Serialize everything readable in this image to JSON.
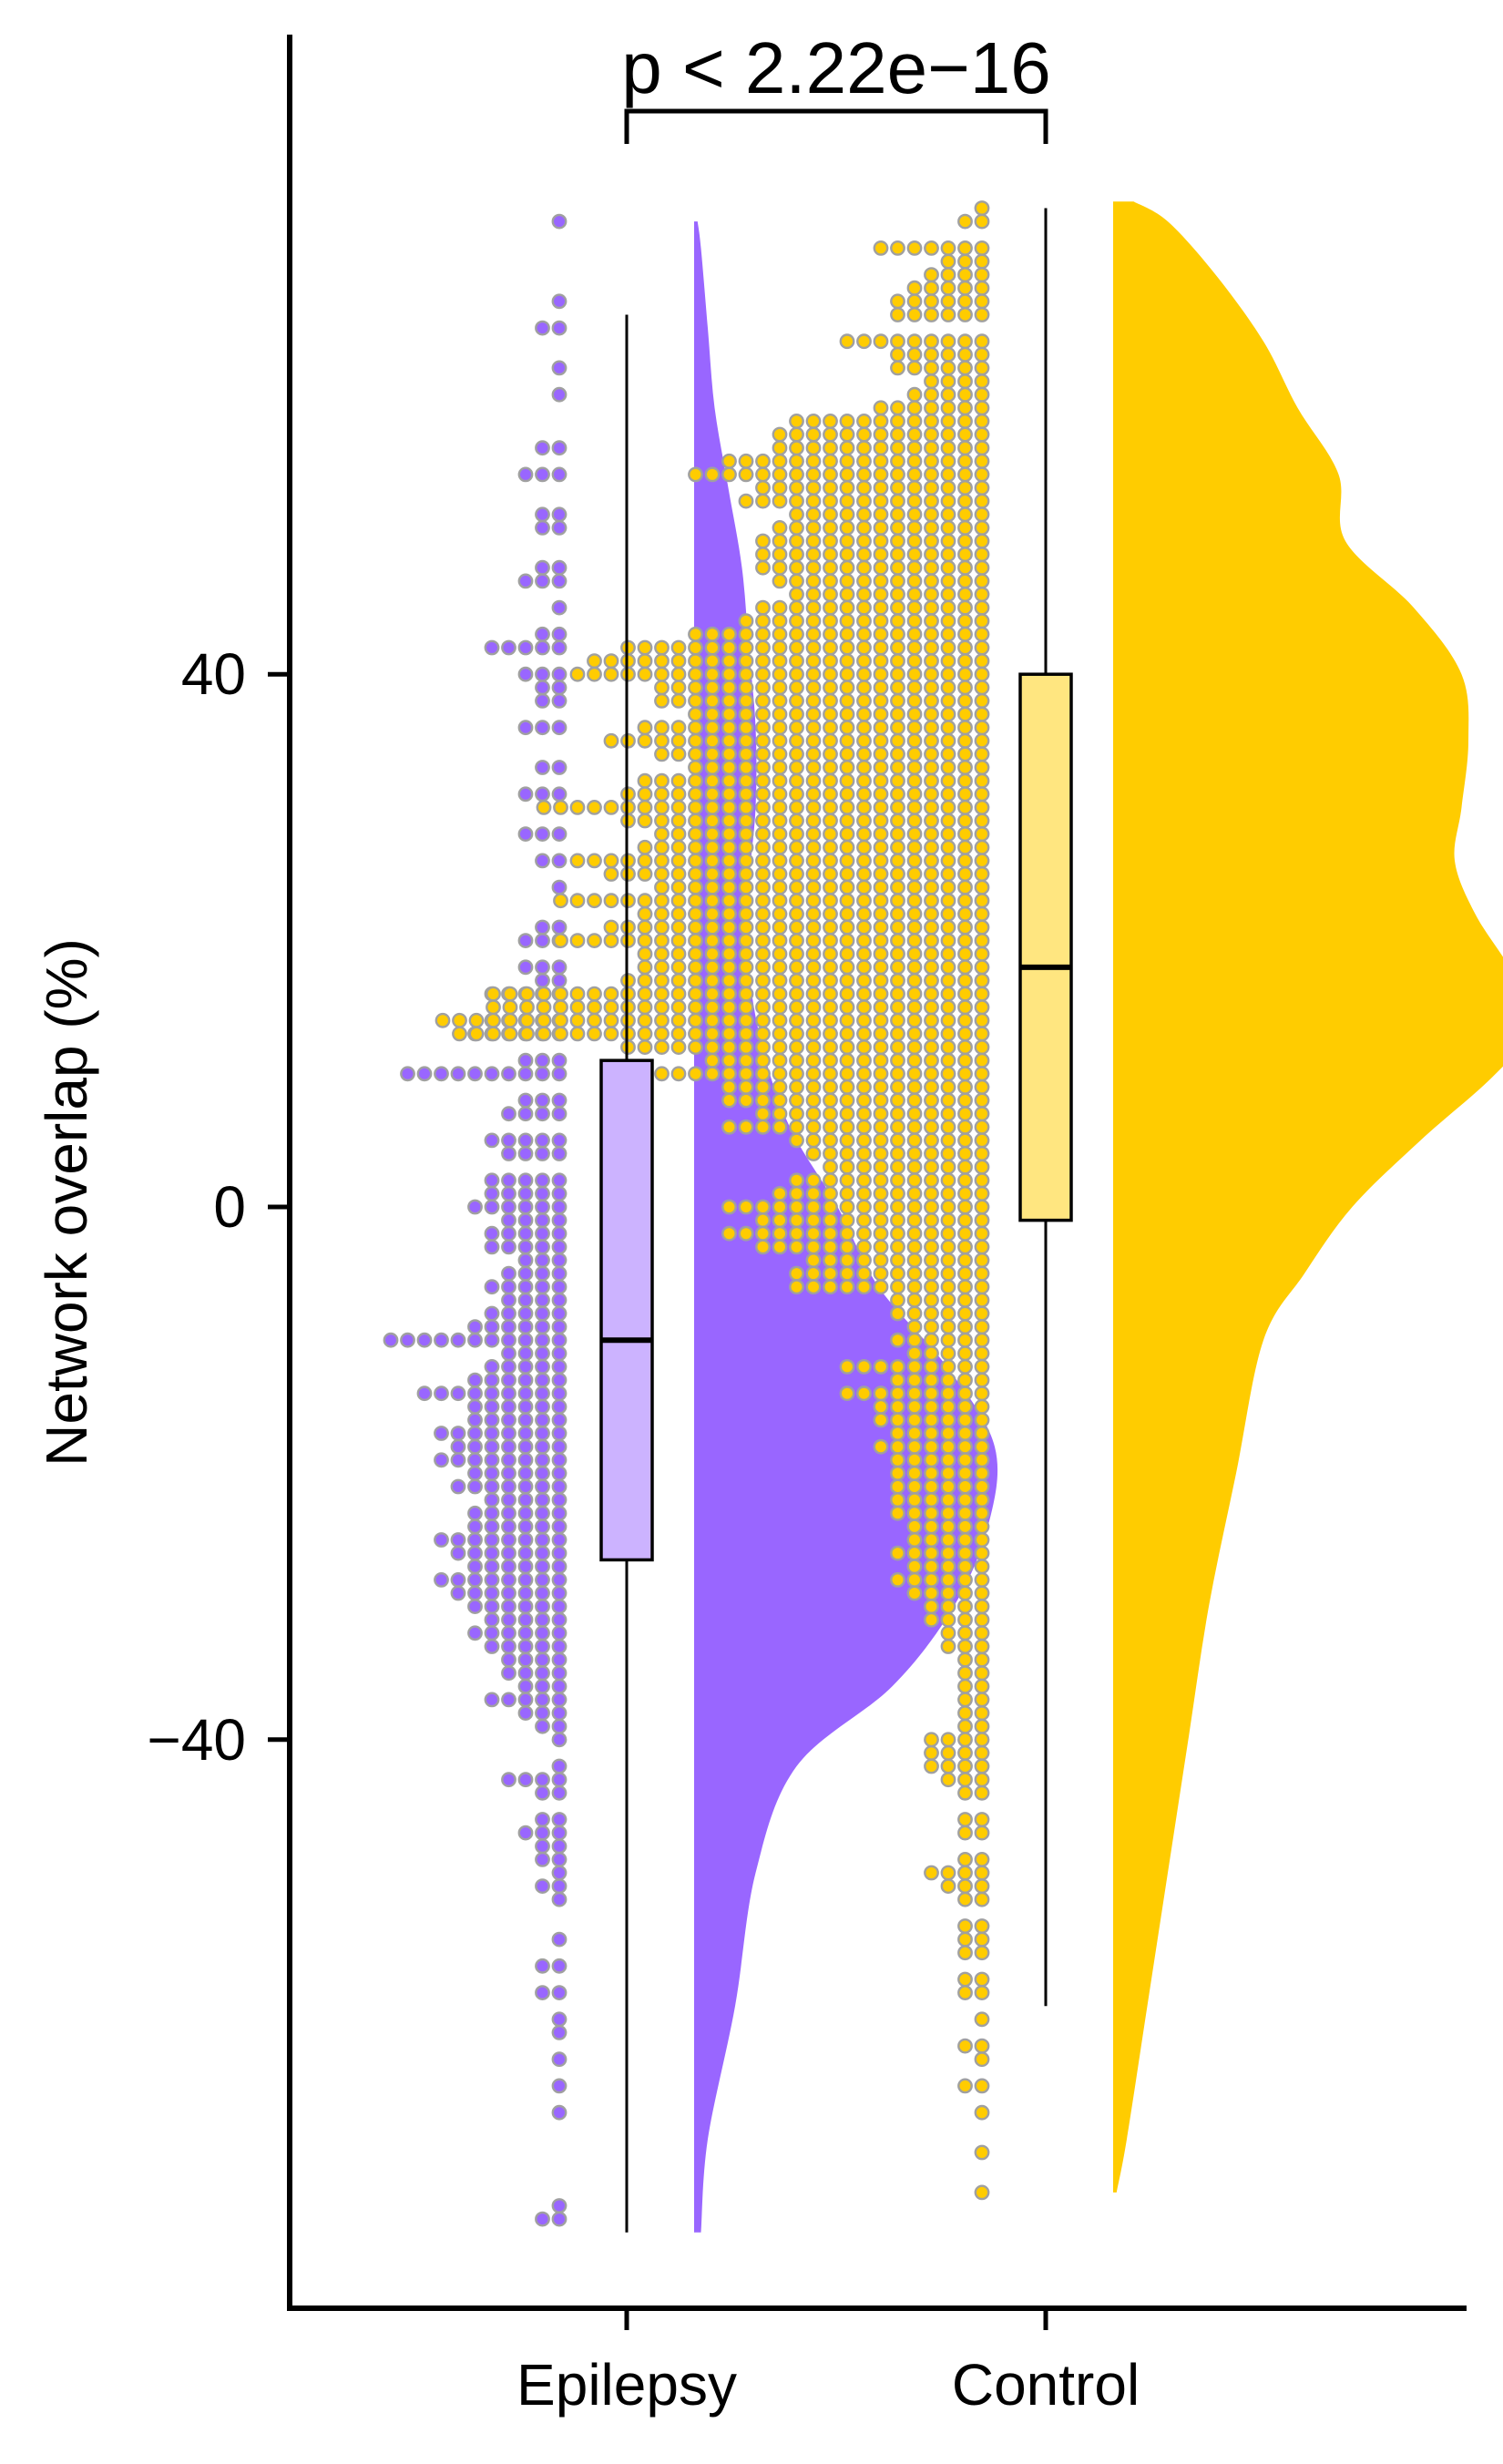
{
  "chart_data": {
    "type": "raincloud",
    "title": "",
    "ylabel": "Network overlap (%)",
    "xlabel": "",
    "ylim": [
      -83,
      92
    ],
    "yticks": [
      -40,
      0,
      40
    ],
    "ytick_labels": [
      "−40",
      "0",
      "40"
    ],
    "categories": [
      "Epilepsy",
      "Control"
    ],
    "annotation": "p < 2.22e−16",
    "grid": false,
    "colors": {
      "epilepsy_fill": "#9966ff",
      "epilepsy_box": "#ccb3ff",
      "control_fill": "#ffcc00",
      "control_box": "#ffe680",
      "point_edge": "#a0a0a0",
      "axis": "#000000"
    },
    "series": [
      {
        "name": "Epilepsy",
        "box": {
          "min": -77,
          "q1": -26.5,
          "median": -10,
          "q3": 11,
          "max": 67
        },
        "density": [
          [
            -77,
            0.01
          ],
          [
            -70,
            0.02
          ],
          [
            -60,
            0.06
          ],
          [
            -50,
            0.09
          ],
          [
            -42,
            0.15
          ],
          [
            -36,
            0.29
          ],
          [
            -30,
            0.38
          ],
          [
            -24,
            0.43
          ],
          [
            -18,
            0.44
          ],
          [
            -12,
            0.37
          ],
          [
            -6,
            0.27
          ],
          [
            0,
            0.21
          ],
          [
            6,
            0.14
          ],
          [
            12,
            0.1
          ],
          [
            18,
            0.08
          ],
          [
            24,
            0.08
          ],
          [
            30,
            0.09
          ],
          [
            36,
            0.09
          ],
          [
            42,
            0.08
          ],
          [
            48,
            0.07
          ],
          [
            54,
            0.05
          ],
          [
            60,
            0.03
          ],
          [
            66,
            0.02
          ],
          [
            72,
            0.01
          ],
          [
            74,
            0.005
          ]
        ],
        "dot_rows": [
          [
            74,
            1
          ],
          [
            68,
            1
          ],
          [
            66,
            2
          ],
          [
            63,
            1
          ],
          [
            61,
            1
          ],
          [
            57,
            2
          ],
          [
            55,
            3
          ],
          [
            52,
            2
          ],
          [
            51,
            2
          ],
          [
            48,
            2
          ],
          [
            47,
            3
          ],
          [
            45,
            1
          ],
          [
            43,
            2
          ],
          [
            42,
            5
          ],
          [
            40,
            3
          ],
          [
            39,
            2
          ],
          [
            38,
            2
          ],
          [
            36,
            3
          ],
          [
            33,
            2
          ],
          [
            31,
            3
          ],
          [
            28,
            3
          ],
          [
            26,
            2
          ],
          [
            24,
            1
          ],
          [
            21,
            2
          ],
          [
            20,
            3
          ],
          [
            18,
            3
          ],
          [
            17,
            2
          ],
          [
            16,
            5
          ],
          [
            14,
            5
          ],
          [
            13,
            6
          ],
          [
            11,
            3
          ],
          [
            10,
            10
          ],
          [
            8,
            3
          ],
          [
            7,
            4
          ],
          [
            5,
            5
          ],
          [
            4,
            4
          ],
          [
            2,
            5
          ],
          [
            1,
            5
          ],
          [
            0,
            6
          ],
          [
            -1,
            4
          ],
          [
            -2,
            5
          ],
          [
            -3,
            5
          ],
          [
            -4,
            3
          ],
          [
            -5,
            4
          ],
          [
            -6,
            5
          ],
          [
            -7,
            4
          ],
          [
            -8,
            5
          ],
          [
            -9,
            6
          ],
          [
            -10,
            11
          ],
          [
            -11,
            4
          ],
          [
            -12,
            5
          ],
          [
            -13,
            6
          ],
          [
            -14,
            9
          ],
          [
            -15,
            6
          ],
          [
            -16,
            6
          ],
          [
            -17,
            8
          ],
          [
            -18,
            7
          ],
          [
            -19,
            8
          ],
          [
            -20,
            6
          ],
          [
            -21,
            7
          ],
          [
            -22,
            5
          ],
          [
            -23,
            6
          ],
          [
            -24,
            6
          ],
          [
            -25,
            8
          ],
          [
            -26,
            7
          ],
          [
            -27,
            6
          ],
          [
            -28,
            8
          ],
          [
            -29,
            7
          ],
          [
            -30,
            6
          ],
          [
            -31,
            5
          ],
          [
            -32,
            6
          ],
          [
            -33,
            5
          ],
          [
            -34,
            4
          ],
          [
            -35,
            4
          ],
          [
            -36,
            3
          ],
          [
            -37,
            5
          ],
          [
            -38,
            3
          ],
          [
            -39,
            2
          ],
          [
            -40,
            1
          ],
          [
            -42,
            1
          ],
          [
            -43,
            4
          ],
          [
            -44,
            2
          ],
          [
            -46,
            2
          ],
          [
            -47,
            3
          ],
          [
            -48,
            2
          ],
          [
            -49,
            2
          ],
          [
            -50,
            1
          ],
          [
            -51,
            2
          ],
          [
            -52,
            1
          ],
          [
            -55,
            1
          ],
          [
            -57,
            2
          ],
          [
            -59,
            2
          ],
          [
            -61,
            1
          ],
          [
            -62,
            1
          ],
          [
            -64,
            1
          ],
          [
            -66,
            1
          ],
          [
            -68,
            1
          ],
          [
            -75,
            1
          ],
          [
            -76,
            2
          ]
        ]
      },
      {
        "name": "Control",
        "box": {
          "min": -60,
          "q1": -1,
          "median": 18,
          "q3": 40,
          "max": 75
        },
        "density": [
          [
            -74,
            0.005
          ],
          [
            -70,
            0.02
          ],
          [
            -60,
            0.05
          ],
          [
            -50,
            0.08
          ],
          [
            -40,
            0.11
          ],
          [
            -30,
            0.14
          ],
          [
            -20,
            0.18
          ],
          [
            -10,
            0.22
          ],
          [
            -5,
            0.28
          ],
          [
            0,
            0.35
          ],
          [
            5,
            0.45
          ],
          [
            10,
            0.56
          ],
          [
            14,
            0.62
          ],
          [
            18,
            0.58
          ],
          [
            22,
            0.53
          ],
          [
            26,
            0.5
          ],
          [
            30,
            0.51
          ],
          [
            35,
            0.52
          ],
          [
            40,
            0.51
          ],
          [
            45,
            0.44
          ],
          [
            50,
            0.34
          ],
          [
            55,
            0.33
          ],
          [
            60,
            0.27
          ],
          [
            65,
            0.22
          ],
          [
            70,
            0.15
          ],
          [
            74,
            0.08
          ],
          [
            75.5,
            0.03
          ]
        ],
        "dot_rows": [
          [
            75,
            1
          ],
          [
            74,
            2
          ],
          [
            72,
            7
          ],
          [
            71,
            3
          ],
          [
            70,
            4
          ],
          [
            69,
            5
          ],
          [
            68,
            6
          ],
          [
            67,
            6
          ],
          [
            65,
            9
          ],
          [
            64,
            6
          ],
          [
            63,
            6
          ],
          [
            62,
            4
          ],
          [
            61,
            5
          ],
          [
            60,
            7
          ],
          [
            59,
            12
          ],
          [
            58,
            13
          ],
          [
            57,
            13
          ],
          [
            56,
            16
          ],
          [
            55,
            18
          ],
          [
            54,
            14
          ],
          [
            53,
            15
          ],
          [
            52,
            12
          ],
          [
            51,
            13
          ],
          [
            50,
            14
          ],
          [
            49,
            14
          ],
          [
            48,
            14
          ],
          [
            47,
            13
          ],
          [
            46,
            12
          ],
          [
            45,
            14
          ],
          [
            44,
            15
          ],
          [
            43,
            18
          ],
          [
            42,
            22
          ],
          [
            41,
            24
          ],
          [
            40,
            25
          ],
          [
            39,
            20
          ],
          [
            38,
            20
          ],
          [
            37,
            18
          ],
          [
            36,
            21
          ],
          [
            35,
            23
          ],
          [
            34,
            20
          ],
          [
            33,
            18
          ],
          [
            32,
            21
          ],
          [
            31,
            22
          ],
          [
            30,
            27
          ],
          [
            29,
            22
          ],
          [
            28,
            20
          ],
          [
            27,
            21
          ],
          [
            26,
            25
          ],
          [
            25,
            23
          ],
          [
            24,
            20
          ],
          [
            23,
            26
          ],
          [
            22,
            21
          ],
          [
            21,
            23
          ],
          [
            20,
            26
          ],
          [
            19,
            21
          ],
          [
            18,
            21
          ],
          [
            17,
            22
          ],
          [
            16,
            30
          ],
          [
            15,
            30
          ],
          [
            14,
            33
          ],
          [
            13,
            32
          ],
          [
            12,
            22
          ],
          [
            11,
            17
          ],
          [
            10,
            21
          ],
          [
            9,
            16
          ],
          [
            8,
            16
          ],
          [
            7,
            14
          ],
          [
            6,
            16
          ],
          [
            5,
            12
          ],
          [
            4,
            11
          ],
          [
            3,
            10
          ],
          [
            2,
            12
          ],
          [
            1,
            13
          ],
          [
            0,
            16
          ],
          [
            -1,
            14
          ],
          [
            -2,
            16
          ],
          [
            -3,
            14
          ],
          [
            -4,
            11
          ],
          [
            -5,
            12
          ],
          [
            -6,
            12
          ],
          [
            -7,
            6
          ],
          [
            -8,
            6
          ],
          [
            -9,
            5
          ],
          [
            -10,
            6
          ],
          [
            -11,
            5
          ],
          [
            -12,
            9
          ],
          [
            -13,
            6
          ],
          [
            -14,
            9
          ],
          [
            -15,
            7
          ],
          [
            -16,
            7
          ],
          [
            -17,
            6
          ],
          [
            -18,
            7
          ],
          [
            -19,
            6
          ],
          [
            -20,
            6
          ],
          [
            -21,
            6
          ],
          [
            -22,
            6
          ],
          [
            -23,
            6
          ],
          [
            -24,
            5
          ],
          [
            -25,
            5
          ],
          [
            -26,
            6
          ],
          [
            -27,
            5
          ],
          [
            -28,
            6
          ],
          [
            -29,
            5
          ],
          [
            -30,
            4
          ],
          [
            -31,
            4
          ],
          [
            -32,
            3
          ],
          [
            -33,
            3
          ],
          [
            -34,
            2
          ],
          [
            -35,
            2
          ],
          [
            -36,
            2
          ],
          [
            -37,
            2
          ],
          [
            -38,
            2
          ],
          [
            -39,
            2
          ],
          [
            -40,
            4
          ],
          [
            -41,
            4
          ],
          [
            -42,
            4
          ],
          [
            -43,
            3
          ],
          [
            -44,
            2
          ],
          [
            -46,
            2
          ],
          [
            -47,
            2
          ],
          [
            -49,
            2
          ],
          [
            -50,
            4
          ],
          [
            -51,
            3
          ],
          [
            -52,
            2
          ],
          [
            -54,
            2
          ],
          [
            -55,
            2
          ],
          [
            -56,
            2
          ],
          [
            -58,
            2
          ],
          [
            -59,
            2
          ],
          [
            -61,
            1
          ],
          [
            -63,
            2
          ],
          [
            -64,
            1
          ],
          [
            -66,
            2
          ],
          [
            -68,
            1
          ],
          [
            -71,
            1
          ],
          [
            -74,
            1
          ]
        ]
      }
    ]
  }
}
